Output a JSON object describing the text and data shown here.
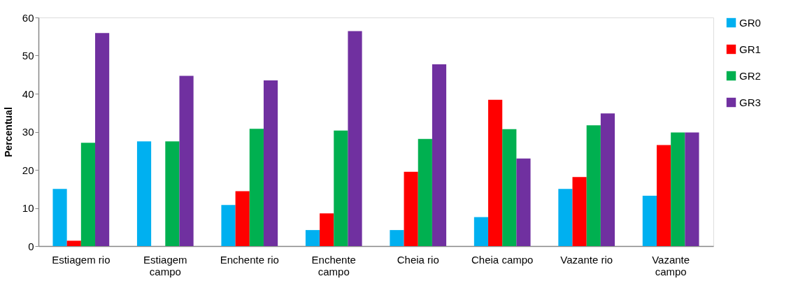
{
  "chart_data": {
    "type": "bar",
    "ylabel": "Percentual",
    "categories": [
      "Estiagem rio",
      "Estiagem campo",
      "Enchente rio",
      "Enchente campo",
      "Cheia rio",
      "Cheia campo",
      "Vazante rio",
      "Vazante campo"
    ],
    "series": [
      {
        "name": "GR0",
        "color": "#00b0f0",
        "values": [
          15.0,
          27.5,
          10.8,
          4.2,
          4.2,
          7.6,
          15.0,
          13.2
        ]
      },
      {
        "name": "GR1",
        "color": "#ff0000",
        "values": [
          1.4,
          0,
          14.4,
          8.6,
          19.5,
          38.4,
          18.1,
          26.5
        ]
      },
      {
        "name": "GR2",
        "color": "#00b050",
        "values": [
          27.1,
          27.5,
          30.8,
          30.3,
          28.1,
          30.7,
          31.7,
          29.8
        ]
      },
      {
        "name": "GR3",
        "color": "#7030a0",
        "values": [
          55.9,
          44.7,
          43.5,
          56.4,
          47.7,
          23.0,
          34.8,
          29.8
        ]
      }
    ],
    "ylim": [
      0,
      60
    ],
    "yticks": [
      0,
      10,
      20,
      30,
      40,
      50,
      60
    ],
    "grid": false,
    "legend": "right"
  }
}
